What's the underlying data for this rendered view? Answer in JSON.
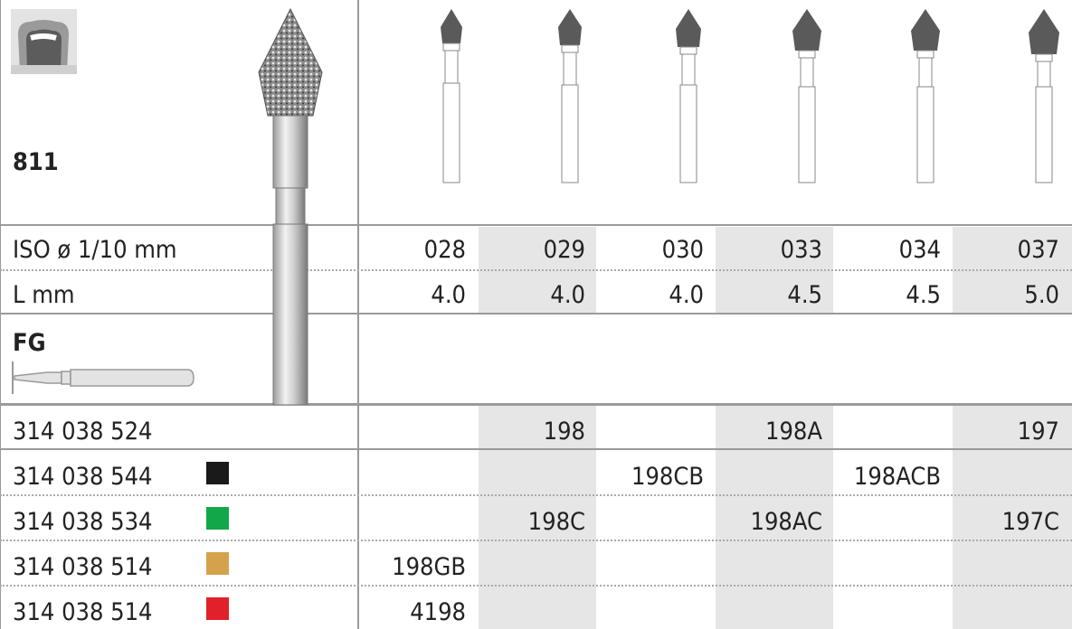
{
  "product": {
    "code": "811",
    "shank_type": "FG"
  },
  "sizes": [
    "028",
    "029",
    "030",
    "033",
    "034",
    "037"
  ],
  "spec_rows": [
    {
      "label": "ISO ø 1/10 mm",
      "values": [
        "028",
        "029",
        "030",
        "033",
        "034",
        "037"
      ]
    },
    {
      "label": "L mm",
      "values": [
        "4.0",
        "4.0",
        "4.0",
        "4.5",
        "4.5",
        "5.0"
      ]
    }
  ],
  "order_rows": [
    {
      "code": "314 038 524",
      "color": null,
      "values": [
        "",
        "198",
        "",
        "198A",
        "",
        "197"
      ]
    },
    {
      "code": "314 038 544",
      "color": "#1a1a1a",
      "values": [
        "",
        "",
        "198CB",
        "",
        "198ACB",
        ""
      ]
    },
    {
      "code": "314 038 534",
      "color": "#12a84a",
      "values": [
        "",
        "198C",
        "",
        "198AC",
        "",
        "197C"
      ]
    },
    {
      "code": "314 038 514",
      "color": "#d4a24c",
      "values": [
        "198GB",
        "",
        "",
        "",
        "",
        ""
      ]
    },
    {
      "code": "314 038 514",
      "color": "#e2202a",
      "values": [
        "4198",
        "",
        "",
        "",
        "",
        ""
      ]
    }
  ],
  "colors": {
    "shade": "#e6e6e6",
    "grid": "#9a9a9a",
    "bur_head": "#5a5a5a"
  }
}
